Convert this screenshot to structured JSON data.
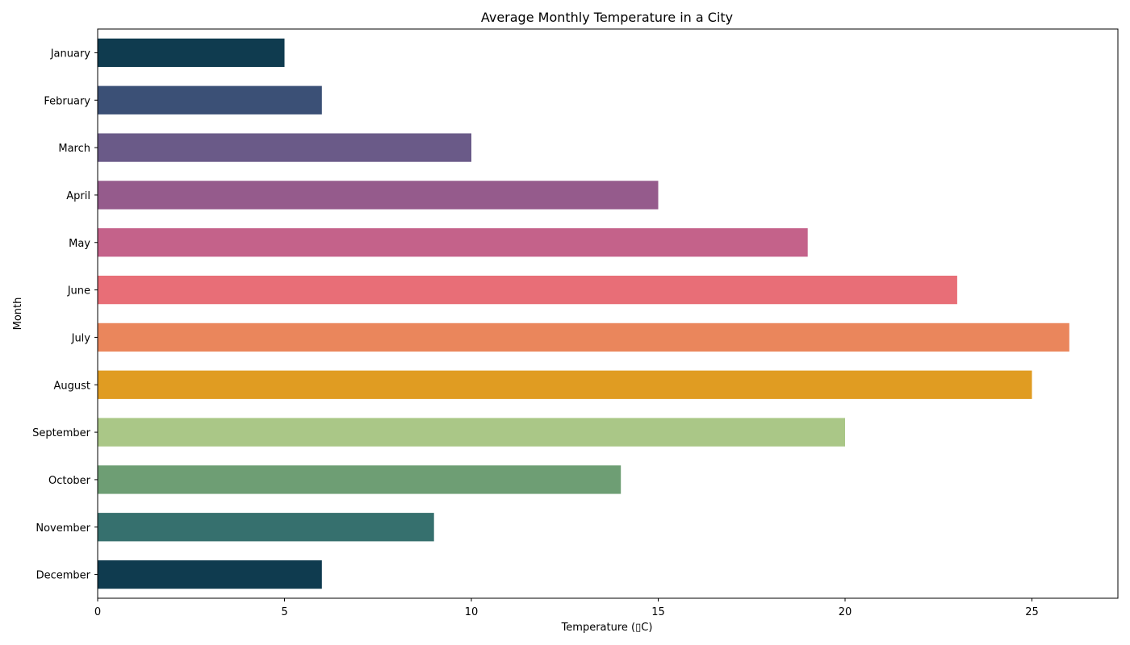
{
  "chart_data": {
    "type": "bar",
    "orientation": "horizontal",
    "title": "Average Monthly Temperature in a City",
    "xlabel": "Temperature (▯C)",
    "ylabel": "Month",
    "categories": [
      "January",
      "February",
      "March",
      "April",
      "May",
      "June",
      "July",
      "August",
      "September",
      "October",
      "November",
      "December"
    ],
    "values": [
      5,
      6,
      10,
      15,
      19,
      23,
      26,
      25,
      20,
      14,
      9,
      6
    ],
    "colors": [
      "#0f3b4f",
      "#3b5076",
      "#6a5a88",
      "#955b8c",
      "#c4628a",
      "#e86e77",
      "#ea865c",
      "#e09c22",
      "#aac787",
      "#6e9e74",
      "#36706e",
      "#0f3b4f"
    ],
    "xlim": [
      0,
      27.3
    ],
    "xticks": [
      0,
      5,
      10,
      15,
      20,
      25
    ],
    "grid": false,
    "legend": "none"
  }
}
